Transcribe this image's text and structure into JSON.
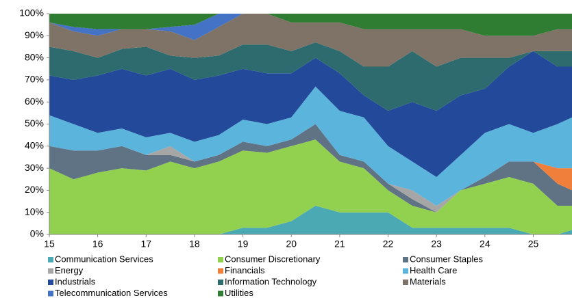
{
  "chart_data": {
    "type": "stacked_area",
    "x": [
      15,
      15.5,
      16,
      16.5,
      17,
      17.5,
      18,
      18.5,
      19,
      19.5,
      20,
      20.5,
      21,
      21.5,
      22,
      22.5,
      23,
      23.5,
      24,
      24.5,
      25,
      25.5,
      25.8
    ],
    "series": [
      {
        "name": "Communication Services",
        "color": "#4aa9b3",
        "values": [
          0,
          0,
          0,
          0,
          0,
          0,
          0,
          0,
          3,
          3,
          6,
          13,
          10,
          10,
          10,
          3,
          3,
          3,
          3,
          3,
          0,
          0,
          2
        ]
      },
      {
        "name": "Consumer Discretionary",
        "color": "#92d050",
        "values": [
          30,
          25,
          28,
          30,
          29,
          33,
          30,
          33,
          35,
          34,
          34,
          30,
          23,
          20,
          10,
          10,
          7,
          17,
          20,
          23,
          23,
          13,
          11
        ]
      },
      {
        "name": "Consumer Staples",
        "color": "#5f7384",
        "values": [
          10,
          13,
          10,
          10,
          7,
          3,
          3,
          3,
          4,
          3,
          3,
          7,
          3,
          3,
          3,
          3,
          0,
          0,
          3,
          7,
          10,
          10,
          7
        ]
      },
      {
        "name": "Energy",
        "color": "#a6a6a6",
        "values": [
          0,
          0,
          0,
          0,
          0,
          4,
          0,
          0,
          0,
          0,
          0,
          0,
          0,
          0,
          0,
          4,
          3,
          0,
          0,
          0,
          0,
          0,
          0
        ]
      },
      {
        "name": "Financials",
        "color": "#f07f3c",
        "values": [
          0,
          0,
          0,
          0,
          0,
          0,
          0,
          0,
          0,
          0,
          0,
          0,
          0,
          0,
          0,
          0,
          0,
          0,
          0,
          0,
          0,
          7,
          10
        ]
      },
      {
        "name": "Health Care",
        "color": "#5bb4dc",
        "values": [
          14,
          12,
          8,
          8,
          8,
          6,
          9,
          9,
          10,
          10,
          10,
          17,
          20,
          20,
          17,
          13,
          13,
          16,
          20,
          17,
          13,
          20,
          23
        ]
      },
      {
        "name": "Industrials",
        "color": "#234a9a",
        "values": [
          18,
          20,
          26,
          27,
          28,
          29,
          28,
          27,
          23,
          23,
          20,
          13,
          17,
          10,
          16,
          27,
          30,
          27,
          20,
          26,
          37,
          26,
          23
        ]
      },
      {
        "name": "Information Technology",
        "color": "#2e6b6e",
        "values": [
          13,
          13,
          8,
          9,
          13,
          6,
          10,
          9,
          11,
          13,
          10,
          7,
          10,
          13,
          20,
          23,
          20,
          17,
          14,
          4,
          0,
          7,
          7
        ]
      },
      {
        "name": "Materials",
        "color": "#7f7266",
        "values": [
          11,
          9,
          10,
          9,
          8,
          11,
          8,
          13,
          14,
          14,
          13,
          9,
          13,
          17,
          17,
          10,
          17,
          13,
          10,
          10,
          7,
          10,
          10
        ]
      },
      {
        "name": "Telecommunication Services",
        "color": "#4472c4",
        "values": [
          0,
          2,
          3,
          0,
          0,
          2,
          7,
          6,
          0,
          0,
          0,
          0,
          0,
          0,
          0,
          0,
          0,
          0,
          0,
          0,
          0,
          0,
          0
        ]
      },
      {
        "name": "Utilities",
        "color": "#2e7d32",
        "values": [
          4,
          6,
          7,
          7,
          7,
          6,
          5,
          0,
          0,
          0,
          4,
          4,
          4,
          7,
          7,
          7,
          7,
          7,
          10,
          10,
          10,
          7,
          7
        ]
      }
    ],
    "xlim": [
      15,
      25.8
    ],
    "xticks": [
      15,
      16,
      17,
      18,
      19,
      20,
      21,
      22,
      23,
      24,
      25
    ],
    "ylim": [
      0,
      100
    ],
    "yticks": [
      {
        "value": 0,
        "label": "0%"
      },
      {
        "value": 10,
        "label": "10%"
      },
      {
        "value": 20,
        "label": "20%"
      },
      {
        "value": 30,
        "label": "30%"
      },
      {
        "value": 40,
        "label": "40%"
      },
      {
        "value": 50,
        "label": "50%"
      },
      {
        "value": 60,
        "label": "60%"
      },
      {
        "value": 70,
        "label": "70%"
      },
      {
        "value": 80,
        "label": "80%"
      },
      {
        "value": 90,
        "label": "90%"
      },
      {
        "value": 100,
        "label": "100%"
      }
    ],
    "legend": "bottom"
  }
}
